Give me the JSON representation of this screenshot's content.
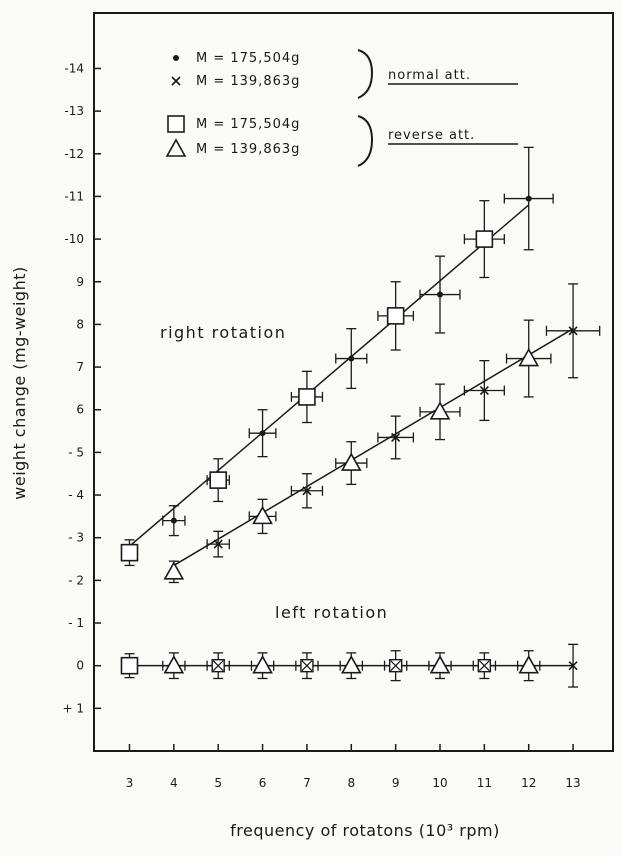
{
  "chart_data": {
    "type": "line",
    "title": "",
    "xlabel": "frequency of rotatons (10³ rpm)",
    "ylabel": "weight change (mg-weight)",
    "xlim": [
      2.2,
      13.9
    ],
    "ylim": [
      -2.0,
      15.3
    ],
    "x_ticks": [
      3,
      4,
      5,
      6,
      7,
      8,
      9,
      10,
      11,
      12,
      13
    ],
    "x_tick_labels": [
      "3",
      "4",
      "5",
      "6",
      "7",
      "8",
      "9",
      "10",
      "11",
      "12",
      "13"
    ],
    "y_ticks": [
      1,
      0,
      -1,
      -2,
      -3,
      -4,
      -5,
      -6,
      -7,
      -8,
      -9,
      -10,
      -11,
      -12,
      -13,
      -14
    ],
    "y_tick_labels": [
      "+ 1",
      "0",
      "- 1",
      "- 2",
      "- 3",
      "- 4",
      "- 5",
      "6",
      "7",
      "8",
      "9",
      "-10",
      "-11",
      "-12",
      "-13",
      "-14"
    ],
    "grid": false,
    "legend_position": "top",
    "legend": {
      "entries": [
        {
          "symbol": "dot",
          "label": "M = 175,504g",
          "group": "normal"
        },
        {
          "symbol": "cross",
          "label": "M = 139,863g",
          "group": "normal"
        },
        {
          "symbol": "square",
          "label": "M = 175,504g",
          "group": "reverse"
        },
        {
          "symbol": "triangle",
          "label": "M = 139,863g",
          "group": "reverse"
        }
      ],
      "group_labels": {
        "normal": "normal att.",
        "reverse": "reverse att."
      }
    },
    "annotations": {
      "right": "right rotation",
      "left": "left rotation"
    },
    "series": [
      {
        "group": "right",
        "fit_line": [
          [
            3,
            -2.8
          ],
          [
            12,
            -10.8
          ]
        ],
        "points": [
          {
            "x": 3,
            "y": -2.65,
            "yerr": 0.3,
            "xerr": 0,
            "marker": "square"
          },
          {
            "x": 4,
            "y": -3.4,
            "yerr": 0.35,
            "xerr": 0.25,
            "marker": "dot"
          },
          {
            "x": 5,
            "y": -4.35,
            "yerr": 0.5,
            "xerr": 0.25,
            "marker": "square"
          },
          {
            "x": 6,
            "y": -5.45,
            "yerr": 0.55,
            "xerr": 0.3,
            "marker": "dot"
          },
          {
            "x": 7,
            "y": -6.3,
            "yerr": 0.6,
            "xerr": 0.35,
            "marker": "square"
          },
          {
            "x": 8,
            "y": -7.2,
            "yerr": 0.7,
            "xerr": 0.35,
            "marker": "dot"
          },
          {
            "x": 9,
            "y": -8.2,
            "yerr": 0.8,
            "xerr": 0.4,
            "marker": "square"
          },
          {
            "x": 10,
            "y": -8.7,
            "yerr": 0.9,
            "xerr": 0.45,
            "marker": "dot"
          },
          {
            "x": 11,
            "y": -10.0,
            "yerr": 0.9,
            "xerr": 0.45,
            "marker": "square"
          },
          {
            "x": 12,
            "y": -10.95,
            "yerr": 1.2,
            "xerr": 0.55,
            "marker": "dot"
          }
        ]
      },
      {
        "group": "right",
        "fit_line": [
          [
            4,
            -2.35
          ],
          [
            13,
            -7.9
          ]
        ],
        "points": [
          {
            "x": 4,
            "y": -2.2,
            "yerr": 0.25,
            "xerr": 0,
            "marker": "triangle"
          },
          {
            "x": 5,
            "y": -2.85,
            "yerr": 0.3,
            "xerr": 0.25,
            "marker": "cross"
          },
          {
            "x": 6,
            "y": -3.5,
            "yerr": 0.4,
            "xerr": 0.3,
            "marker": "triangle"
          },
          {
            "x": 7,
            "y": -4.1,
            "yerr": 0.4,
            "xerr": 0.35,
            "marker": "cross"
          },
          {
            "x": 8,
            "y": -4.75,
            "yerr": 0.5,
            "xerr": 0.35,
            "marker": "triangle"
          },
          {
            "x": 9,
            "y": -5.35,
            "yerr": 0.5,
            "xerr": 0.4,
            "marker": "cross"
          },
          {
            "x": 10,
            "y": -5.95,
            "yerr": 0.65,
            "xerr": 0.45,
            "marker": "triangle"
          },
          {
            "x": 11,
            "y": -6.45,
            "yerr": 0.7,
            "xerr": 0.45,
            "marker": "cross"
          },
          {
            "x": 12,
            "y": -7.2,
            "yerr": 0.9,
            "xerr": 0.5,
            "marker": "triangle"
          },
          {
            "x": 13,
            "y": -7.85,
            "yerr": 1.1,
            "xerr": 0.6,
            "marker": "cross"
          }
        ]
      },
      {
        "group": "left",
        "fit_line": [
          [
            3,
            0
          ],
          [
            13,
            0
          ]
        ],
        "points": [
          {
            "x": 3,
            "y": 0,
            "yerr": 0.28,
            "xerr": 0,
            "marker": "square"
          },
          {
            "x": 4,
            "y": 0,
            "yerr": 0.3,
            "xerr": 0.25,
            "marker": "triangle"
          },
          {
            "x": 5,
            "y": 0,
            "yerr": 0.3,
            "xerr": 0.25,
            "marker": "square-x"
          },
          {
            "x": 6,
            "y": 0,
            "yerr": 0.3,
            "xerr": 0.25,
            "marker": "triangle"
          },
          {
            "x": 7,
            "y": 0,
            "yerr": 0.3,
            "xerr": 0.25,
            "marker": "square-x"
          },
          {
            "x": 8,
            "y": 0,
            "yerr": 0.3,
            "xerr": 0.25,
            "marker": "triangle"
          },
          {
            "x": 9,
            "y": 0,
            "yerr": 0.35,
            "xerr": 0.25,
            "marker": "square-x"
          },
          {
            "x": 10,
            "y": 0,
            "yerr": 0.3,
            "xerr": 0.25,
            "marker": "triangle"
          },
          {
            "x": 11,
            "y": 0,
            "yerr": 0.3,
            "xerr": 0.25,
            "marker": "square-x"
          },
          {
            "x": 12,
            "y": 0,
            "yerr": 0.35,
            "xerr": 0.25,
            "marker": "triangle"
          },
          {
            "x": 13,
            "y": 0,
            "yerr": 0.5,
            "xerr": 0,
            "marker": "cross"
          }
        ]
      }
    ]
  },
  "colors": {
    "ink": "#1a1a1a",
    "paper": "#fafaf7",
    "marker_fill": "#ffffff"
  }
}
